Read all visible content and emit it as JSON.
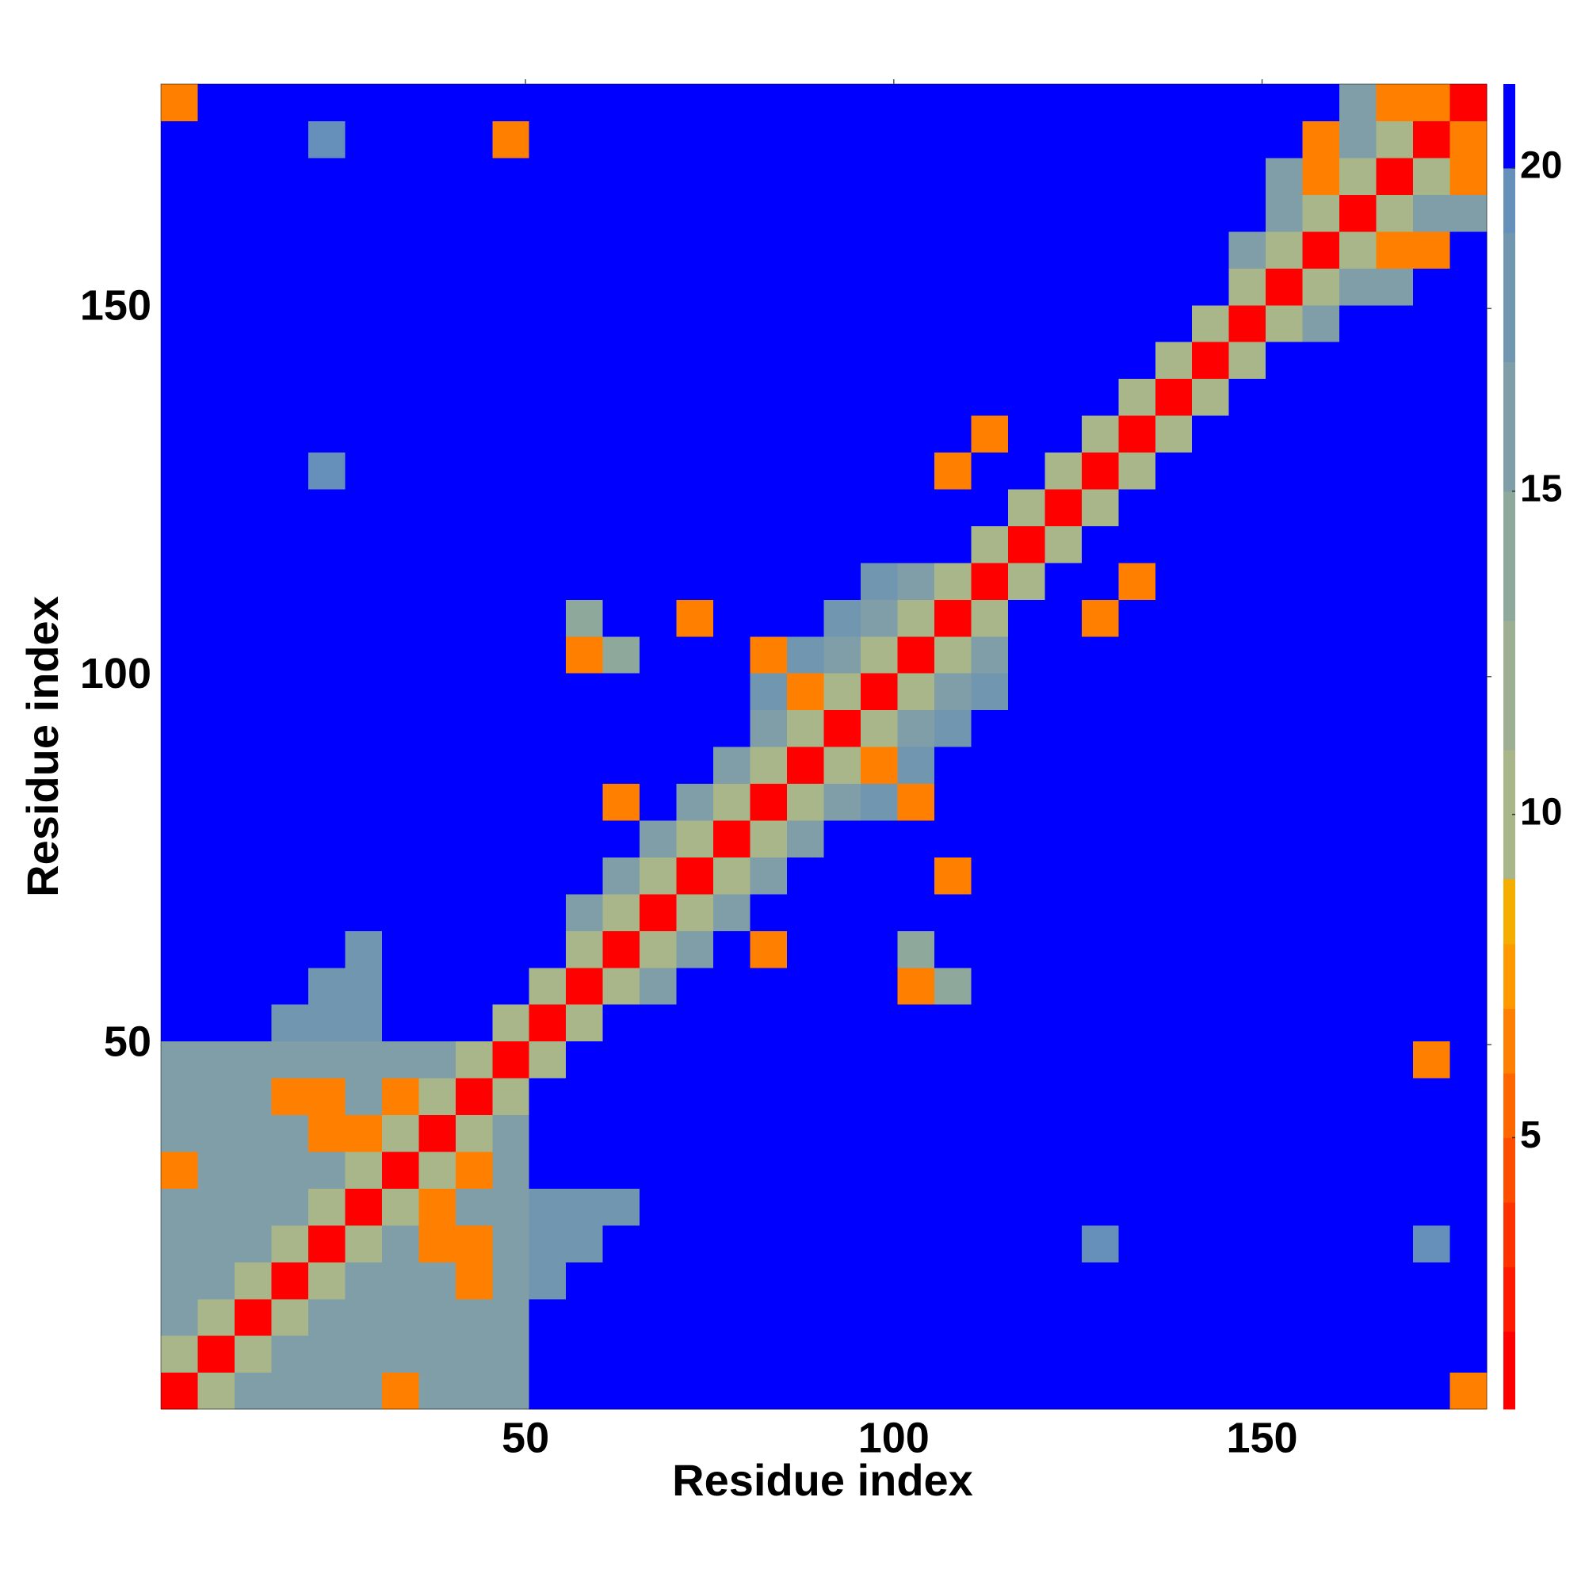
{
  "chart_data": {
    "type": "heatmap",
    "xlabel": "Residue index",
    "ylabel": "Residue index",
    "x": [
      3,
      8,
      13,
      18,
      23,
      28,
      33,
      38,
      43,
      48,
      53,
      58,
      63,
      68,
      73,
      78,
      83,
      88,
      93,
      98,
      103,
      108,
      113,
      118,
      123,
      128,
      133,
      138,
      143,
      148,
      153,
      158,
      163,
      168,
      173,
      178
    ],
    "y": [
      3,
      8,
      13,
      18,
      23,
      28,
      33,
      38,
      43,
      48,
      53,
      58,
      63,
      68,
      73,
      78,
      83,
      88,
      93,
      98,
      103,
      108,
      113,
      118,
      123,
      128,
      133,
      138,
      143,
      148,
      153,
      158,
      163,
      168,
      173,
      178
    ],
    "xlim": [
      0.5,
      180.5
    ],
    "ylim": [
      0.5,
      180.5
    ],
    "xticks": [
      50,
      100,
      150
    ],
    "yticks": [
      50,
      100,
      150
    ],
    "z": [
      [
        1.5,
        10,
        16,
        16,
        16,
        16,
        6.5,
        16,
        16,
        16,
        21,
        21,
        21,
        21,
        21,
        21,
        21,
        21,
        21,
        21,
        21,
        21,
        21,
        21,
        21,
        21,
        21,
        21,
        21,
        21,
        21,
        21,
        21,
        21,
        21,
        6.5
      ],
      [
        10,
        1.5,
        10,
        16,
        16,
        16,
        16,
        16,
        16,
        16,
        21,
        21,
        21,
        21,
        21,
        21,
        21,
        21,
        21,
        21,
        21,
        21,
        21,
        21,
        21,
        21,
        21,
        21,
        21,
        21,
        21,
        21,
        21,
        21,
        21,
        21
      ],
      [
        16,
        10,
        1.5,
        10,
        16,
        16,
        16,
        16,
        16,
        16,
        21,
        21,
        21,
        21,
        21,
        21,
        21,
        21,
        21,
        21,
        21,
        21,
        21,
        21,
        21,
        21,
        21,
        21,
        21,
        21,
        21,
        21,
        21,
        21,
        21,
        21
      ],
      [
        16,
        16,
        10,
        1.5,
        10,
        16,
        16,
        16,
        6.5,
        16,
        18,
        21,
        21,
        21,
        21,
        21,
        21,
        21,
        21,
        21,
        21,
        21,
        21,
        21,
        21,
        21,
        21,
        21,
        21,
        21,
        21,
        21,
        21,
        21,
        21,
        21
      ],
      [
        16,
        16,
        16,
        10,
        1.5,
        10,
        16,
        6.5,
        6.5,
        16,
        18,
        17,
        21,
        21,
        21,
        21,
        21,
        21,
        21,
        21,
        21,
        21,
        21,
        21,
        21,
        19,
        21,
        21,
        21,
        21,
        21,
        21,
        21,
        21,
        19,
        21
      ],
      [
        16,
        16,
        16,
        16,
        10,
        1.5,
        10,
        6.5,
        16,
        16,
        18,
        17,
        18,
        21,
        21,
        21,
        21,
        21,
        21,
        21,
        21,
        21,
        21,
        21,
        21,
        21,
        21,
        21,
        21,
        21,
        21,
        21,
        21,
        21,
        21,
        21
      ],
      [
        6.5,
        16,
        16,
        16,
        16,
        10,
        1.5,
        10,
        6.5,
        16,
        21,
        21,
        21,
        21,
        21,
        21,
        21,
        21,
        21,
        21,
        21,
        21,
        21,
        21,
        21,
        21,
        21,
        21,
        21,
        21,
        21,
        21,
        21,
        21,
        21,
        21
      ],
      [
        16,
        16,
        16,
        16,
        6.5,
        6.5,
        10,
        1.5,
        10,
        16,
        21,
        21,
        21,
        21,
        21,
        21,
        21,
        21,
        21,
        21,
        21,
        21,
        21,
        21,
        21,
        21,
        21,
        21,
        21,
        21,
        21,
        21,
        21,
        21,
        21,
        21
      ],
      [
        16,
        16,
        16,
        6.5,
        6.5,
        16,
        6.5,
        10,
        1.5,
        10,
        21,
        21,
        21,
        21,
        21,
        21,
        21,
        21,
        21,
        21,
        21,
        21,
        21,
        21,
        21,
        21,
        21,
        21,
        21,
        21,
        21,
        21,
        21,
        21,
        21,
        21
      ],
      [
        16,
        16,
        16,
        16,
        16,
        16,
        16,
        16,
        10,
        1.5,
        10,
        21,
        21,
        21,
        21,
        21,
        21,
        21,
        21,
        21,
        21,
        21,
        21,
        21,
        21,
        21,
        21,
        21,
        21,
        21,
        21,
        21,
        21,
        21,
        6.5,
        21
      ],
      [
        21,
        21,
        21,
        18,
        18,
        18,
        21,
        21,
        21,
        10,
        1.5,
        10,
        21,
        21,
        21,
        21,
        21,
        21,
        21,
        21,
        21,
        21,
        21,
        21,
        21,
        21,
        21,
        21,
        21,
        21,
        21,
        21,
        21,
        21,
        21,
        21
      ],
      [
        21,
        21,
        21,
        21,
        17,
        17,
        21,
        21,
        21,
        21,
        10,
        1.5,
        10,
        15,
        21,
        21,
        21,
        21,
        21,
        21,
        6.5,
        14,
        21,
        21,
        21,
        21,
        21,
        21,
        21,
        21,
        21,
        21,
        21,
        21,
        21,
        21
      ],
      [
        21,
        21,
        21,
        21,
        21,
        18,
        21,
        21,
        21,
        21,
        21,
        10,
        1.5,
        10,
        15,
        21,
        6.5,
        21,
        21,
        21,
        14,
        21,
        21,
        21,
        21,
        21,
        21,
        21,
        21,
        21,
        21,
        21,
        21,
        21,
        21,
        21
      ],
      [
        21,
        21,
        21,
        21,
        21,
        21,
        21,
        21,
        21,
        21,
        21,
        15,
        10,
        1.5,
        10,
        15,
        21,
        21,
        21,
        21,
        21,
        21,
        21,
        21,
        21,
        21,
        21,
        21,
        21,
        21,
        21,
        21,
        21,
        21,
        21,
        21
      ],
      [
        21,
        21,
        21,
        21,
        21,
        21,
        21,
        21,
        21,
        21,
        21,
        21,
        15,
        10,
        1.5,
        10,
        15,
        21,
        21,
        21,
        21,
        6.5,
        21,
        21,
        21,
        21,
        21,
        21,
        21,
        21,
        21,
        21,
        21,
        21,
        21,
        21
      ],
      [
        21,
        21,
        21,
        21,
        21,
        21,
        21,
        21,
        21,
        21,
        21,
        21,
        21,
        15,
        10,
        1.5,
        10,
        15,
        21,
        21,
        21,
        21,
        21,
        21,
        21,
        21,
        21,
        21,
        21,
        21,
        21,
        21,
        21,
        21,
        21,
        21
      ],
      [
        21,
        21,
        21,
        21,
        21,
        21,
        21,
        21,
        21,
        21,
        21,
        21,
        6.5,
        21,
        15,
        10,
        1.5,
        10,
        15,
        17,
        6.5,
        21,
        21,
        21,
        21,
        21,
        21,
        21,
        21,
        21,
        21,
        21,
        21,
        21,
        21,
        21
      ],
      [
        21,
        21,
        21,
        21,
        21,
        21,
        21,
        21,
        21,
        21,
        21,
        21,
        21,
        21,
        21,
        15,
        10,
        1.5,
        10,
        6.5,
        17,
        21,
        21,
        21,
        21,
        21,
        21,
        21,
        21,
        21,
        21,
        21,
        21,
        21,
        21,
        21
      ],
      [
        21,
        21,
        21,
        21,
        21,
        21,
        21,
        21,
        21,
        21,
        21,
        21,
        21,
        21,
        21,
        21,
        15,
        10,
        1.5,
        10,
        15,
        17,
        21,
        21,
        21,
        21,
        21,
        21,
        21,
        21,
        21,
        21,
        21,
        21,
        21,
        21
      ],
      [
        21,
        21,
        21,
        21,
        21,
        21,
        21,
        21,
        21,
        21,
        21,
        21,
        21,
        21,
        21,
        21,
        17,
        6.5,
        10,
        1.5,
        10,
        15,
        17,
        21,
        21,
        21,
        21,
        21,
        21,
        21,
        21,
        21,
        21,
        21,
        21,
        21
      ],
      [
        21,
        21,
        21,
        21,
        21,
        21,
        21,
        21,
        21,
        21,
        21,
        6.5,
        14,
        21,
        21,
        21,
        6.5,
        17,
        15,
        10,
        1.5,
        10,
        15,
        21,
        21,
        21,
        21,
        21,
        21,
        21,
        21,
        21,
        21,
        21,
        21,
        21
      ],
      [
        21,
        21,
        21,
        21,
        21,
        21,
        21,
        21,
        21,
        21,
        21,
        14,
        21,
        21,
        6.5,
        21,
        21,
        21,
        17,
        15,
        10,
        1.5,
        10,
        21,
        21,
        6.5,
        21,
        21,
        21,
        21,
        21,
        21,
        21,
        21,
        21,
        21
      ],
      [
        21,
        21,
        21,
        21,
        21,
        21,
        21,
        21,
        21,
        21,
        21,
        21,
        21,
        21,
        21,
        21,
        21,
        21,
        21,
        17,
        15,
        10,
        1.5,
        10,
        21,
        21,
        6.5,
        21,
        21,
        21,
        21,
        21,
        21,
        21,
        21,
        21
      ],
      [
        21,
        21,
        21,
        21,
        21,
        21,
        21,
        21,
        21,
        21,
        21,
        21,
        21,
        21,
        21,
        21,
        21,
        21,
        21,
        21,
        21,
        21,
        10,
        1.5,
        10,
        21,
        21,
        21,
        21,
        21,
        21,
        21,
        21,
        21,
        21,
        21
      ],
      [
        21,
        21,
        21,
        21,
        21,
        21,
        21,
        21,
        21,
        21,
        21,
        21,
        21,
        21,
        21,
        21,
        21,
        21,
        21,
        21,
        21,
        21,
        21,
        10,
        1.5,
        10,
        21,
        21,
        21,
        21,
        21,
        21,
        21,
        21,
        21,
        21
      ],
      [
        21,
        21,
        21,
        21,
        19,
        21,
        21,
        21,
        21,
        21,
        21,
        21,
        21,
        21,
        21,
        21,
        21,
        21,
        21,
        21,
        21,
        6.5,
        21,
        21,
        10,
        1.5,
        10,
        21,
        21,
        21,
        21,
        21,
        21,
        21,
        21,
        21
      ],
      [
        21,
        21,
        21,
        21,
        21,
        21,
        21,
        21,
        21,
        21,
        21,
        21,
        21,
        21,
        21,
        21,
        21,
        21,
        21,
        21,
        21,
        21,
        6.5,
        21,
        21,
        10,
        1.5,
        10,
        21,
        21,
        21,
        21,
        21,
        21,
        21,
        21
      ],
      [
        21,
        21,
        21,
        21,
        21,
        21,
        21,
        21,
        21,
        21,
        21,
        21,
        21,
        21,
        21,
        21,
        21,
        21,
        21,
        21,
        21,
        21,
        21,
        21,
        21,
        21,
        10,
        1.5,
        10,
        21,
        21,
        21,
        21,
        21,
        21,
        21
      ],
      [
        21,
        21,
        21,
        21,
        21,
        21,
        21,
        21,
        21,
        21,
        21,
        21,
        21,
        21,
        21,
        21,
        21,
        21,
        21,
        21,
        21,
        21,
        21,
        21,
        21,
        21,
        21,
        10,
        1.5,
        10,
        21,
        21,
        21,
        21,
        21,
        21
      ],
      [
        21,
        21,
        21,
        21,
        21,
        21,
        21,
        21,
        21,
        21,
        21,
        21,
        21,
        21,
        21,
        21,
        21,
        21,
        21,
        21,
        21,
        21,
        21,
        21,
        21,
        21,
        21,
        21,
        10,
        1.5,
        10,
        15,
        21,
        21,
        21,
        21
      ],
      [
        21,
        21,
        21,
        21,
        21,
        21,
        21,
        21,
        21,
        21,
        21,
        21,
        21,
        21,
        21,
        21,
        21,
        21,
        21,
        21,
        21,
        21,
        21,
        21,
        21,
        21,
        21,
        21,
        21,
        10,
        1.5,
        10,
        15,
        15,
        21,
        21
      ],
      [
        21,
        21,
        21,
        21,
        21,
        21,
        21,
        21,
        21,
        21,
        21,
        21,
        21,
        21,
        21,
        21,
        21,
        21,
        21,
        21,
        21,
        21,
        21,
        21,
        21,
        21,
        21,
        21,
        21,
        15,
        10,
        1.5,
        10,
        6.5,
        6.5,
        21
      ],
      [
        21,
        21,
        21,
        21,
        21,
        21,
        21,
        21,
        21,
        21,
        21,
        21,
        21,
        21,
        21,
        21,
        21,
        21,
        21,
        21,
        21,
        21,
        21,
        21,
        21,
        21,
        21,
        21,
        21,
        21,
        15,
        10,
        1.5,
        10,
        15,
        15
      ],
      [
        21,
        21,
        21,
        21,
        21,
        21,
        21,
        21,
        21,
        21,
        21,
        21,
        21,
        21,
        21,
        21,
        21,
        21,
        21,
        21,
        21,
        21,
        21,
        21,
        21,
        21,
        21,
        21,
        21,
        21,
        15,
        6.5,
        10,
        1.5,
        10,
        6.5
      ],
      [
        21,
        21,
        21,
        21,
        19,
        21,
        21,
        21,
        21,
        6.5,
        21,
        21,
        21,
        21,
        21,
        21,
        21,
        21,
        21,
        21,
        21,
        21,
        21,
        21,
        21,
        21,
        21,
        21,
        21,
        21,
        21,
        6.5,
        15,
        10,
        1.5,
        6.5
      ],
      [
        6.5,
        21,
        21,
        21,
        21,
        21,
        21,
        21,
        21,
        21,
        21,
        21,
        21,
        21,
        21,
        21,
        21,
        21,
        21,
        21,
        21,
        21,
        21,
        21,
        21,
        21,
        21,
        21,
        21,
        21,
        21,
        21,
        15,
        6.5,
        6.5,
        1.5
      ]
    ],
    "colorbar": {
      "ticks": [
        5,
        10,
        15,
        20
      ],
      "levels": [
        0.8,
        2,
        3,
        4,
        5,
        6,
        7,
        8,
        9,
        11,
        13,
        15,
        17,
        19,
        20,
        21.3
      ],
      "colors": [
        "#ff0000",
        "#ff1a00",
        "#ff3300",
        "#ff4d00",
        "#ff6600",
        "#ff8000",
        "#ff9900",
        "#f5ad00",
        "#a9b68a",
        "#9daf92",
        "#8fa89c",
        "#7f9ea8",
        "#7196b0",
        "#6690ba",
        "#0000ff"
      ]
    }
  }
}
